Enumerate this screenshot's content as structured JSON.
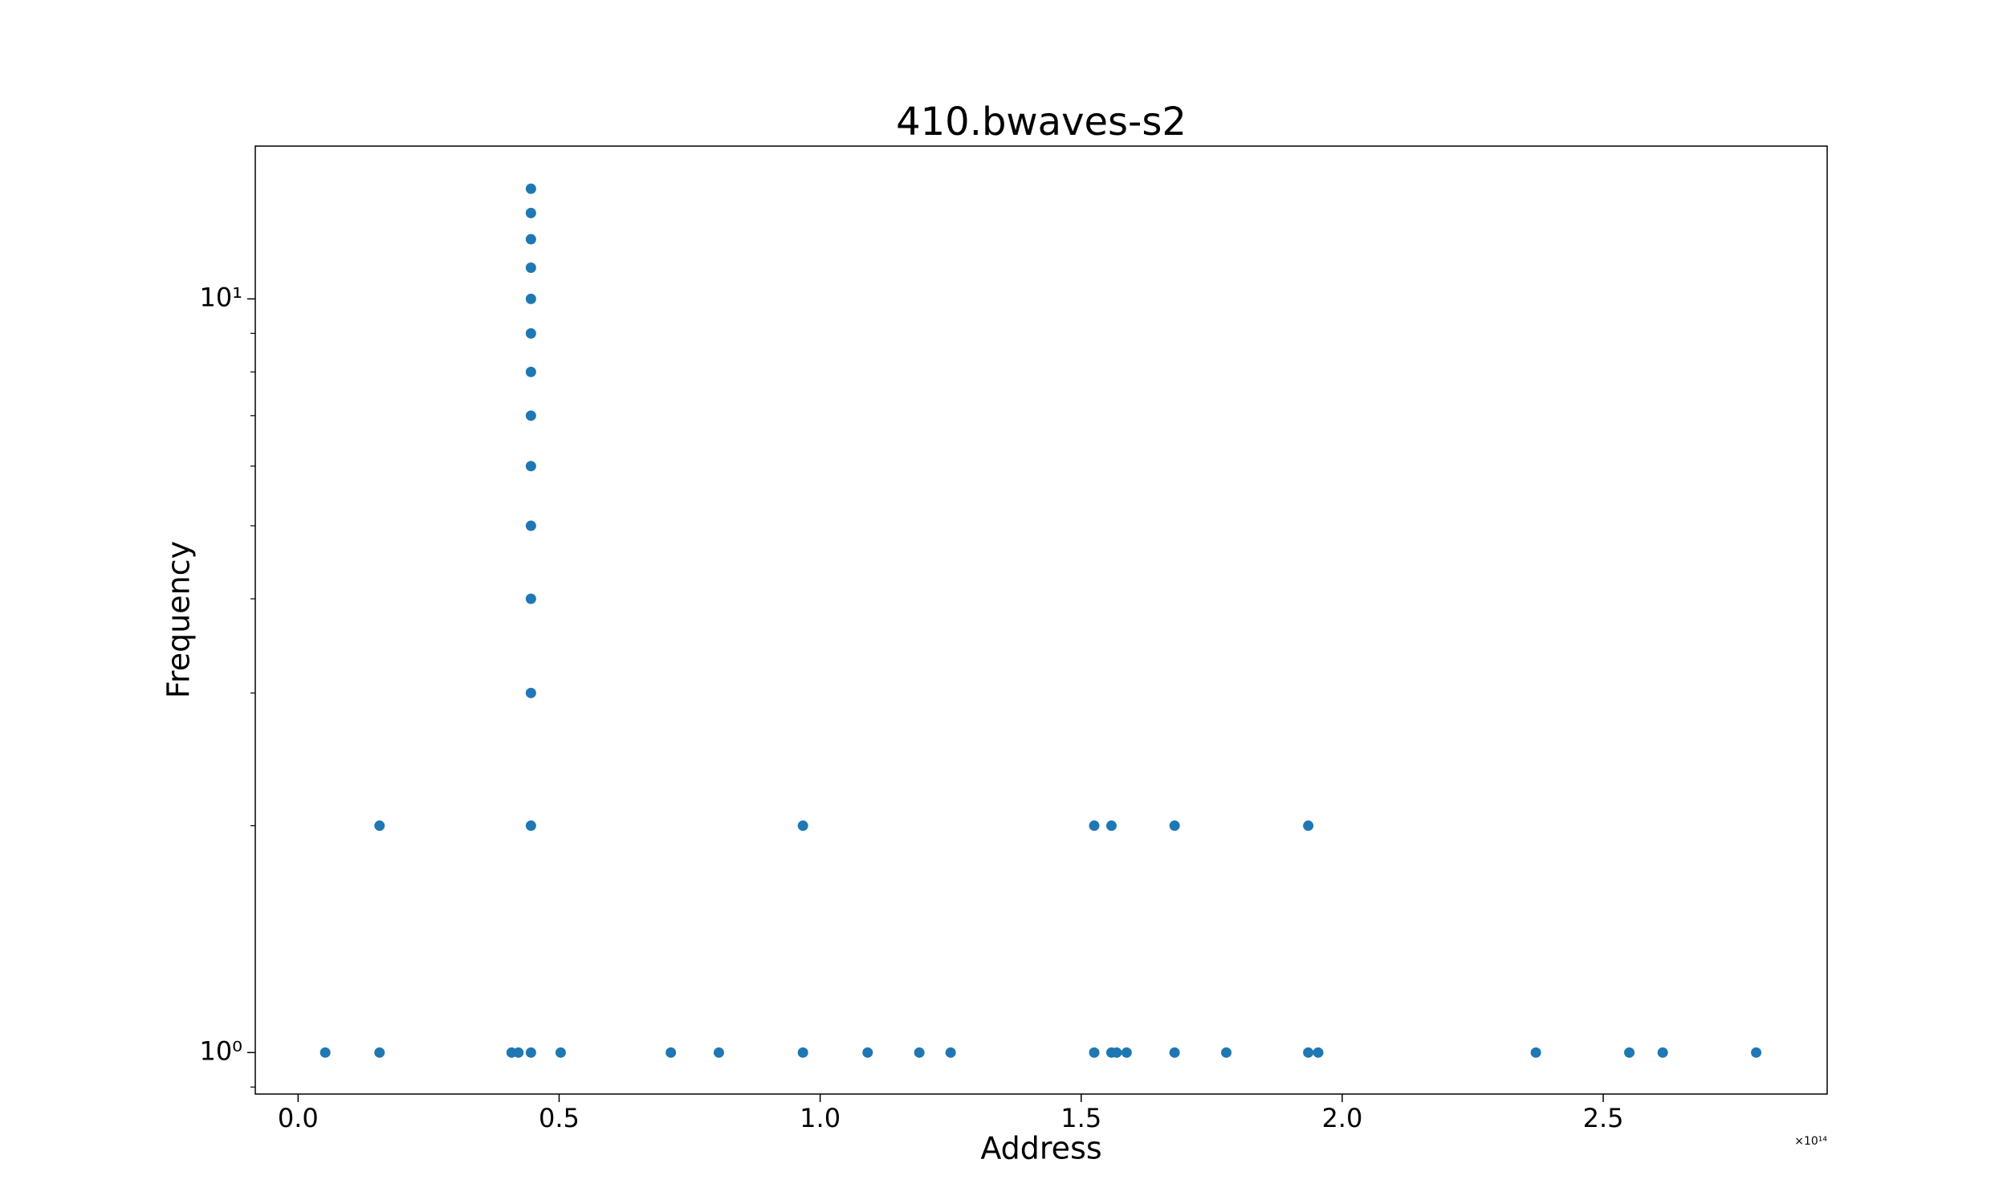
{
  "chart_data": {
    "type": "scatter",
    "title": "410.bwaves-s2",
    "x_label": "Address",
    "y_label": "Frequency",
    "x_offset_label": "×10¹⁴",
    "color": "#1f77b4",
    "y_log": true,
    "x": [
      0.446,
      0.446,
      0.446,
      0.446,
      0.446,
      0.446,
      0.446,
      0.446,
      0.446,
      0.446,
      0.446,
      0.446,
      0.156,
      0.446,
      0.967,
      1.525,
      1.558,
      1.679,
      1.935,
      0.052,
      0.156,
      0.409,
      0.422,
      0.446,
      0.503,
      0.714,
      0.806,
      0.967,
      1.091,
      1.19,
      1.25,
      1.525,
      1.558,
      1.568,
      1.587,
      1.679,
      1.778,
      1.935,
      1.954,
      2.371,
      2.55,
      2.614,
      2.793
    ],
    "values": [
      14,
      13,
      12,
      11,
      10,
      9,
      8,
      7,
      6,
      5,
      4,
      3,
      2,
      2,
      2,
      2,
      2,
      2,
      2,
      1,
      1,
      1,
      1,
      1,
      1,
      1,
      1,
      1,
      1,
      1,
      1,
      1,
      1,
      1,
      1,
      1,
      1,
      1,
      1,
      1,
      1,
      1,
      1
    ],
    "xlim": [
      -0.082,
      2.929
    ],
    "ylim": [
      0.881,
      15.95
    ],
    "xticks": [
      {
        "value": 0,
        "label": "0.0"
      },
      {
        "value": 0.5,
        "label": "0.5"
      },
      {
        "value": 1,
        "label": "1.0"
      },
      {
        "value": 1.5,
        "label": "1.5"
      },
      {
        "value": 2,
        "label": "2.0"
      },
      {
        "value": 2.5,
        "label": "2.5"
      }
    ],
    "yticks": [
      {
        "value": 1,
        "label": "10⁰"
      },
      {
        "value": 10,
        "label": "10¹"
      }
    ],
    "yminorticks": [
      0.9,
      2,
      3,
      4,
      5,
      6,
      7,
      8,
      9
    ]
  }
}
